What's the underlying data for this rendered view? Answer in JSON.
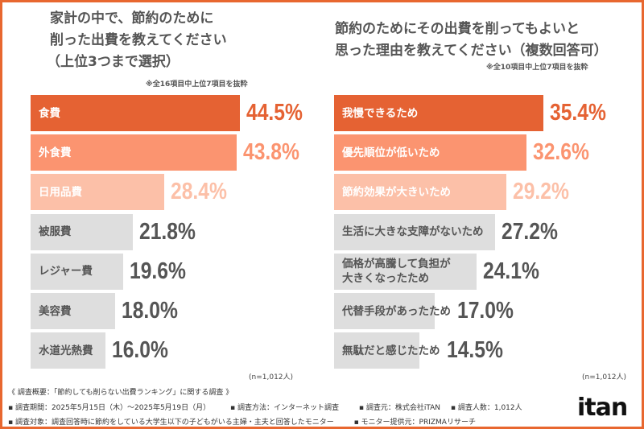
{
  "chart_data": [
    {
      "type": "bar",
      "orientation": "horizontal",
      "title": "家計の中で、節約のために\n削った出費を教えてください\n（上位3つまで選択）",
      "title_lines": [
        "家計の中で、節約のために",
        "削った出費を教えてください",
        "（上位3つまで選択）"
      ],
      "note": "※全16項目中上位7項目を抜粋",
      "categories": [
        "食費",
        "外食費",
        "日用品費",
        "被服費",
        "レジャー費",
        "美容費",
        "水道光熱費"
      ],
      "values": [
        44.5,
        43.8,
        28.4,
        21.8,
        19.6,
        18.0,
        16.0
      ],
      "value_labels": [
        "44.5%",
        "43.8%",
        "28.4%",
        "21.8%",
        "19.6%",
        "18.0%",
        "16.0%"
      ],
      "unit": "%",
      "sample": "(n=1,012人)"
    },
    {
      "type": "bar",
      "orientation": "horizontal",
      "title": "節約のためにその出費を削ってもよいと\n思った理由を教えてください（複数回答可）",
      "title_lines": [
        "節約のためにその出費を削ってもよいと",
        "思った理由を教えてください（複数回答可）"
      ],
      "note": "※全10項目中上位7項目を抜粋",
      "categories": [
        "我慢できるため",
        "優先順位が低いため",
        "節約効果が大きいため",
        "生活に大きな支障がないため",
        "価格が高騰して負担が\n大きくなったため",
        "代替手段があったため",
        "無駄だと感じたため"
      ],
      "values": [
        35.4,
        32.6,
        29.2,
        27.2,
        24.1,
        17.0,
        14.5
      ],
      "value_labels": [
        "35.4%",
        "32.6%",
        "29.2%",
        "27.2%",
        "24.1%",
        "17.0%",
        "14.5%"
      ],
      "unit": "%",
      "sample": "(n=1,012人)"
    }
  ],
  "colors": {
    "border": "#e8672f",
    "rank1": "#e56233",
    "rank2": "#fb9470",
    "rank3": "#fcc0a8",
    "other": "#dedede",
    "rank1_text": "#e56233",
    "rank2_text": "#fb9470",
    "rank3_text": "#fcc0a8",
    "other_text": "#555555",
    "other_label": "#555555"
  },
  "footer": {
    "summary": "《 調査概要：「節約しても削らない出費ランキング」に関する調査 》",
    "period": "▪ 調査期間：2025年5月15日（木）～2025年5月19日（月）",
    "method": "▪ 調査方法：インターネット調査",
    "source": "▪ 調査元：株式会社iTAN",
    "count": "▪ 調査人数：1,012人",
    "target": "▪ 調査対象：調査回答時に節約をしている大学生以下の子どもがいる主婦・主夫と回答したモニター",
    "provider": "▪ モニター提供元：PRIZMAリサーチ"
  },
  "logo": "itan"
}
